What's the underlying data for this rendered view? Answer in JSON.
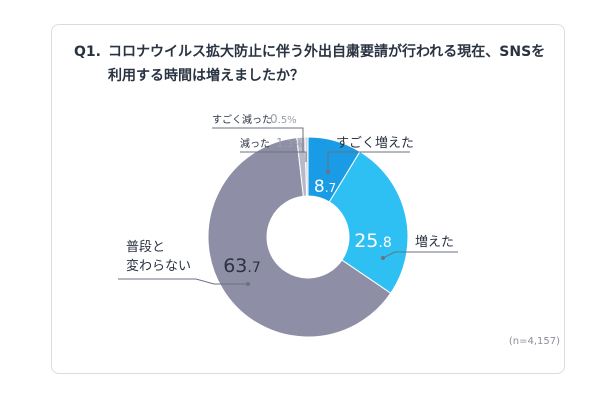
{
  "question": {
    "number": "Q1.",
    "line1": "コロナウイルス拡大防止に伴う外出自粛要請が行われる現在、SNSを",
    "line2": "利用する時間は増えましたか？"
  },
  "note": "(n=4,157)",
  "chart_data": {
    "type": "pie",
    "donut": true,
    "categories": [
      "すごく増えた",
      "増えた",
      "普段と変わらない",
      "減った",
      "すごく減った"
    ],
    "values": [
      8.7,
      25.8,
      63.7,
      1.3,
      0.5
    ],
    "unit": "%",
    "colors": [
      "#1a9be6",
      "#2ec0f2",
      "#8e8fa6",
      "#b8b8c6",
      "#d2d2dc"
    ],
    "value_labels": [
      {
        "int": "8",
        "dec": ".7",
        "color": "#ffffff"
      },
      {
        "int": "25",
        "dec": ".8",
        "color": "#ffffff"
      },
      {
        "int": "63",
        "dec": ".7",
        "color": "#2a3342"
      },
      {
        "int": "1",
        "dec": ".3%",
        "color": "#9aa0aa"
      },
      {
        "int": "0",
        "dec": ".5%",
        "color": "#9aa0aa"
      }
    ],
    "category_label_lines": [
      [
        "すごく増えた"
      ],
      [
        "増えた"
      ],
      [
        "普段と",
        "変わらない"
      ],
      [
        "減った"
      ],
      [
        "すごく減った"
      ]
    ],
    "legend": "callouts"
  }
}
